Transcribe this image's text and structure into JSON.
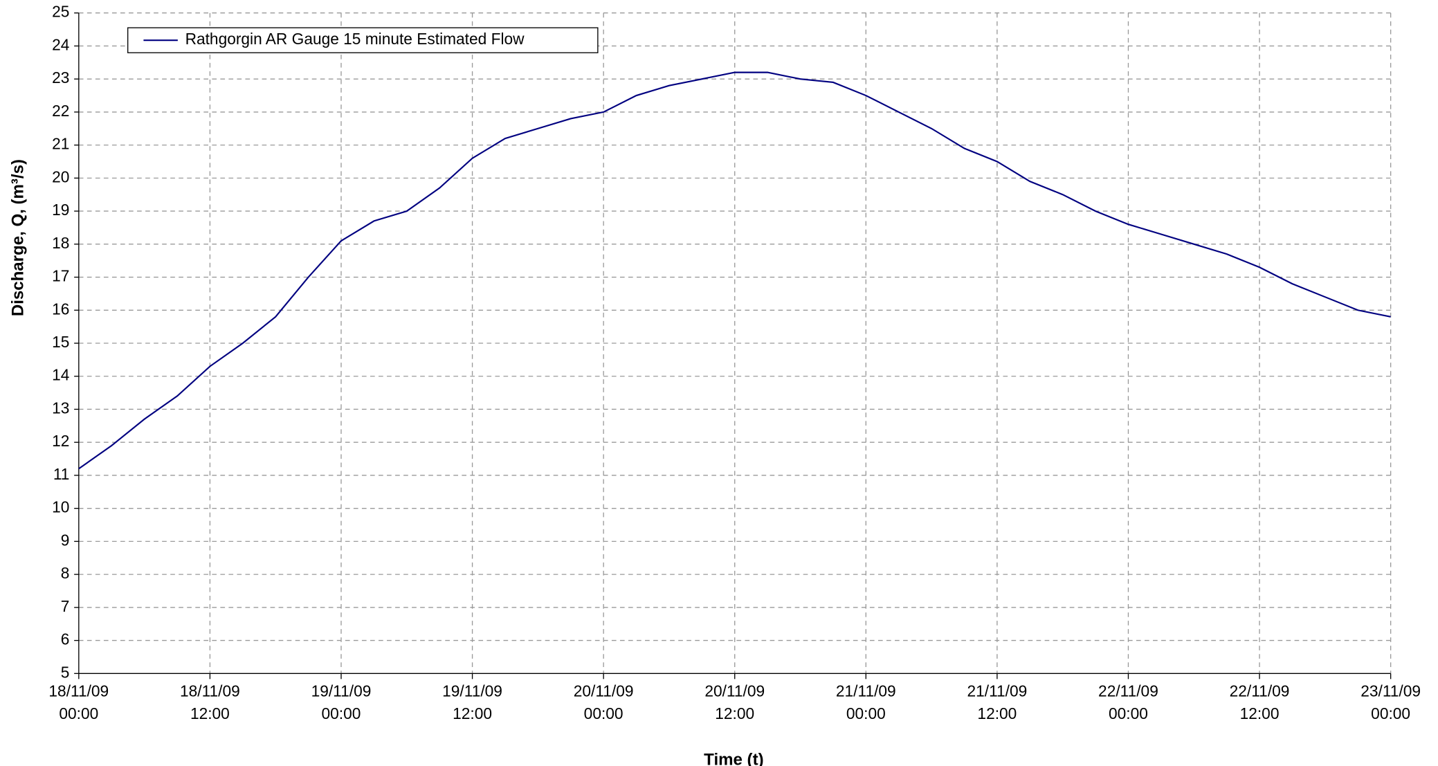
{
  "chart_data": {
    "type": "line",
    "x_label": "Time (t)",
    "y_label": "Discharge, Q, (m³/s)",
    "x": [
      "18/11/09 00:00",
      "18/11/09 03:00",
      "18/11/09 06:00",
      "18/11/09 09:00",
      "18/11/09 12:00",
      "18/11/09 15:00",
      "18/11/09 18:00",
      "18/11/09 21:00",
      "19/11/09 00:00",
      "19/11/09 03:00",
      "19/11/09 06:00",
      "19/11/09 09:00",
      "19/11/09 12:00",
      "19/11/09 15:00",
      "19/11/09 18:00",
      "19/11/09 21:00",
      "20/11/09 00:00",
      "20/11/09 03:00",
      "20/11/09 06:00",
      "20/11/09 09:00",
      "20/11/09 12:00",
      "20/11/09 15:00",
      "20/11/09 18:00",
      "20/11/09 21:00",
      "21/11/09 00:00",
      "21/11/09 03:00",
      "21/11/09 06:00",
      "21/11/09 09:00",
      "21/11/09 12:00",
      "21/11/09 15:00",
      "21/11/09 18:00",
      "21/11/09 21:00",
      "22/11/09 00:00",
      "22/11/09 03:00",
      "22/11/09 06:00",
      "22/11/09 09:00",
      "22/11/09 12:00",
      "22/11/09 15:00",
      "22/11/09 18:00",
      "22/11/09 21:00",
      "23/11/09 00:00"
    ],
    "series": [
      {
        "name": "Rathgorgin AR Gauge 15 minute Estimated Flow",
        "color": "#000080",
        "values": [
          11.2,
          11.9,
          12.7,
          13.4,
          14.3,
          15.0,
          15.8,
          17.0,
          18.1,
          18.7,
          19.0,
          19.7,
          20.6,
          21.2,
          21.5,
          21.8,
          22.0,
          22.5,
          22.8,
          23.0,
          23.2,
          23.2,
          23.0,
          22.9,
          22.5,
          22.0,
          21.5,
          20.9,
          20.5,
          19.9,
          19.5,
          19.0,
          18.6,
          18.3,
          18.0,
          17.7,
          17.3,
          16.8,
          16.4,
          16.0,
          15.8
        ]
      }
    ],
    "xlim": [
      "18/11/09 00:00",
      "23/11/09 00:00"
    ],
    "xticks": [
      "18/11/09 00:00",
      "18/11/09 12:00",
      "19/11/09 00:00",
      "19/11/09 12:00",
      "20/11/09 00:00",
      "20/11/09 12:00",
      "21/11/09 00:00",
      "21/11/09 12:00",
      "22/11/09 00:00",
      "22/11/09 12:00",
      "23/11/09 00:00"
    ],
    "ylim": [
      5,
      25
    ],
    "yticks": [
      5,
      6,
      7,
      8,
      9,
      10,
      11,
      12,
      13,
      14,
      15,
      16,
      17,
      18,
      19,
      20,
      21,
      22,
      23,
      24,
      25
    ],
    "grid": true,
    "legend": "upper left"
  }
}
